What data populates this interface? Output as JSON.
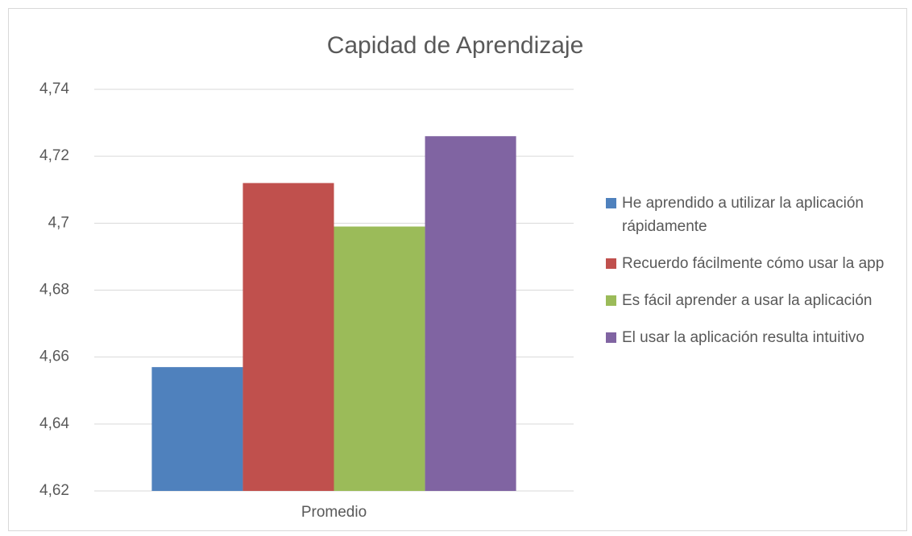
{
  "chart_data": {
    "type": "bar",
    "title": "Capidad de Aprendizaje",
    "categories": [
      "Promedio"
    ],
    "series": [
      {
        "name": "He aprendido a utilizar la aplicación rápidamente",
        "color": "#4f81bd",
        "values": [
          4.657
        ]
      },
      {
        "name": "Recuerdo fácilmente cómo usar la app",
        "color": "#c0504d",
        "values": [
          4.712
        ]
      },
      {
        "name": "Es fácil aprender a usar la aplicación",
        "color": "#9bbb59",
        "values": [
          4.699
        ]
      },
      {
        "name": "El usar la aplicación resulta intuitivo",
        "color": "#8064a2",
        "values": [
          4.726
        ]
      }
    ],
    "ylim": [
      4.62,
      4.74
    ],
    "yticks": [
      {
        "value": 4.62,
        "label": "4,62"
      },
      {
        "value": 4.64,
        "label": "4,64"
      },
      {
        "value": 4.66,
        "label": "4,66"
      },
      {
        "value": 4.68,
        "label": "4,68"
      },
      {
        "value": 4.7,
        "label": "4,7"
      },
      {
        "value": 4.72,
        "label": "4,72"
      },
      {
        "value": 4.74,
        "label": "4,74"
      }
    ],
    "grid": true,
    "legend": "right"
  }
}
